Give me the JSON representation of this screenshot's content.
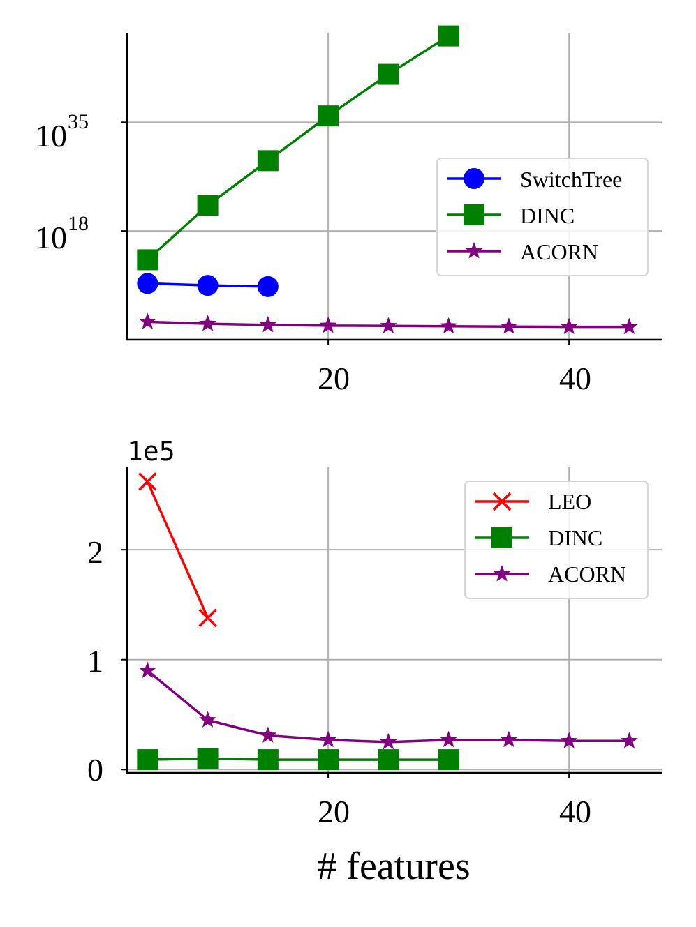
{
  "chart_data": [
    {
      "type": "line",
      "yscale": "log",
      "xlabel": "",
      "ylabel": "",
      "xlim": [
        3.3,
        47.7
      ],
      "ylim_log10": [
        1,
        49
      ],
      "xticks": [
        20,
        40
      ],
      "xtick_labels": [
        "20",
        "40"
      ],
      "yticks_log10": [
        18,
        35
      ],
      "ytick_labels": [
        {
          "base": "10",
          "exp": "18"
        },
        {
          "base": "10",
          "exp": "35"
        }
      ],
      "legend": {
        "placement": "center-right"
      },
      "series": [
        {
          "name": "SwitchTree",
          "color": "#0000ff",
          "marker": "circle",
          "x": [
            5,
            10,
            15
          ],
          "y_log10": [
            9.8,
            9.5,
            9.3
          ]
        },
        {
          "name": "DINC",
          "color": "#008000",
          "marker": "square",
          "x": [
            5,
            10,
            15,
            20,
            25,
            30
          ],
          "y_log10": [
            13.5,
            22.0,
            29.0,
            36.0,
            42.5,
            48.5
          ]
        },
        {
          "name": "ACORN",
          "color": "#800080",
          "marker": "star",
          "x": [
            5,
            10,
            15,
            20,
            25,
            30,
            35,
            40,
            45
          ],
          "y_log10": [
            3.8,
            3.5,
            3.3,
            3.2,
            3.15,
            3.1,
            3.05,
            3.0,
            3.0
          ]
        }
      ]
    },
    {
      "type": "line",
      "xlabel": "# features",
      "ylabel": "",
      "offset_text": "1e5",
      "xlim": [
        3.3,
        47.7
      ],
      "ylim": [
        -0.03,
        2.75
      ],
      "xticks": [
        20,
        40
      ],
      "xtick_labels": [
        "20",
        "40"
      ],
      "yticks": [
        0,
        1,
        2
      ],
      "ytick_labels": [
        "0",
        "1",
        "2"
      ],
      "legend": {
        "placement": "top-right"
      },
      "series": [
        {
          "name": "LEO",
          "color": "#ff0000",
          "marker": "x",
          "x": [
            5,
            10
          ],
          "y": [
            2.62,
            1.38
          ]
        },
        {
          "name": "DINC",
          "color": "#008000",
          "marker": "square",
          "x": [
            5,
            10,
            15,
            20,
            25,
            30
          ],
          "y": [
            0.09,
            0.1,
            0.09,
            0.09,
            0.09,
            0.09
          ]
        },
        {
          "name": "ACORN",
          "color": "#800080",
          "marker": "star",
          "x": [
            5,
            10,
            15,
            20,
            25,
            30,
            35,
            40,
            45
          ],
          "y": [
            0.9,
            0.45,
            0.31,
            0.27,
            0.25,
            0.27,
            0.27,
            0.26,
            0.26
          ]
        }
      ]
    }
  ]
}
